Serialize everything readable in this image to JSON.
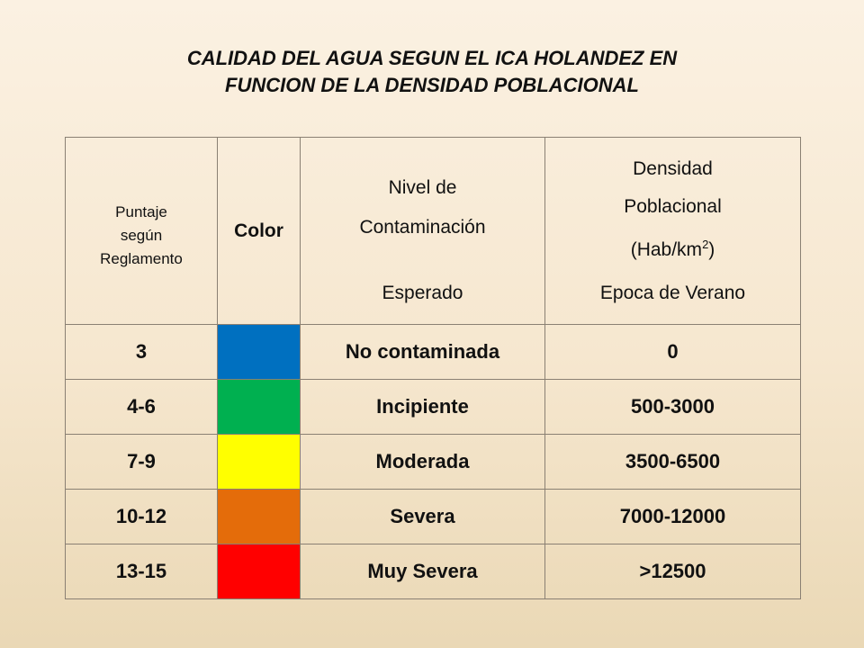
{
  "title": {
    "line1": "CALIDAD DEL AGUA SEGUN  EL ICA HOLANDEZ EN",
    "line2": "FUNCION DE LA DENSIDAD POBLACIONAL"
  },
  "headers": {
    "score": [
      "Puntaje",
      "según",
      "Reglamento"
    ],
    "color": "Color",
    "level": {
      "line1": "Nivel de",
      "line2": "Contaminación",
      "line3": "Esperado"
    },
    "density": {
      "line1": "Densidad",
      "line2": "Poblacional",
      "line3_pre": "(Hab/km",
      "line3_sup": "2",
      "line3_post": ")",
      "line4": "Epoca de Verano"
    }
  },
  "rows": [
    {
      "score": "3",
      "color": "#0070c0",
      "level": "No contaminada",
      "density": "0"
    },
    {
      "score": "4-6",
      "color": "#00b050",
      "level": "Incipiente",
      "density": "500-3000"
    },
    {
      "score": "7-9",
      "color": "#ffff00",
      "level": "Moderada",
      "density": "3500-6500"
    },
    {
      "score": "10-12",
      "color": "#e46c0a",
      "level": "Severa",
      "density": "7000-12000"
    },
    {
      "score": "13-15",
      "color": "#ff0000",
      "level": "Muy Severa",
      "density": ">12500"
    }
  ]
}
